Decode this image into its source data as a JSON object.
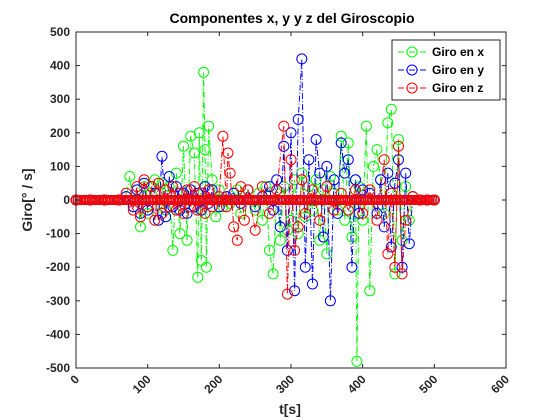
{
  "chart_data": {
    "type": "line",
    "title": "Componentes x, y y z del Giroscopio",
    "xlabel": "t[s]",
    "ylabel": "Giro[° / s]",
    "xlim": [
      0,
      600
    ],
    "ylim": [
      -500,
      500
    ],
    "xticks": [
      0,
      100,
      200,
      300,
      400,
      500,
      600
    ],
    "yticks": [
      -500,
      -400,
      -300,
      -200,
      -100,
      0,
      100,
      200,
      300,
      400,
      500
    ],
    "grid": false,
    "legend_position": "top-right",
    "marker": "circle",
    "line_style": "dash-dot",
    "series": [
      {
        "name": "Giro en x",
        "color": "#00ff00",
        "x": [
          0,
          20,
          40,
          60,
          70,
          75,
          80,
          85,
          90,
          95,
          100,
          105,
          110,
          115,
          120,
          125,
          130,
          135,
          140,
          145,
          150,
          155,
          160,
          165,
          170,
          172,
          175,
          178,
          180,
          182,
          185,
          190,
          195,
          200,
          205,
          210,
          215,
          220,
          225,
          230,
          240,
          250,
          255,
          260,
          265,
          270,
          275,
          280,
          285,
          290,
          295,
          300,
          305,
          310,
          315,
          320,
          325,
          330,
          335,
          340,
          345,
          350,
          355,
          360,
          365,
          370,
          375,
          380,
          385,
          390,
          392,
          395,
          400,
          405,
          410,
          415,
          420,
          425,
          430,
          435,
          440,
          445,
          450,
          455,
          460,
          465,
          470,
          480,
          490,
          500
        ],
        "y": [
          0,
          0,
          0,
          0,
          10,
          70,
          -20,
          30,
          -80,
          40,
          -40,
          20,
          60,
          -60,
          50,
          -30,
          40,
          -150,
          80,
          -100,
          160,
          -120,
          190,
          140,
          -230,
          200,
          -180,
          380,
          150,
          -200,
          220,
          60,
          -50,
          30,
          -20,
          10,
          -10,
          20,
          30,
          -40,
          30,
          -30,
          20,
          -60,
          40,
          -150,
          -220,
          30,
          -120,
          40,
          -90,
          -60,
          60,
          -100,
          80,
          -50,
          40,
          -30,
          60,
          -120,
          30,
          -160,
          70,
          20,
          -30,
          190,
          -60,
          170,
          -110,
          60,
          -480,
          40,
          -60,
          220,
          -270,
          100,
          150,
          60,
          -40,
          230,
          270,
          -220,
          180,
          -120,
          40,
          -60,
          10,
          0,
          0,
          0
        ]
      },
      {
        "name": "Giro en y",
        "color": "#0000ff",
        "x": [
          0,
          20,
          40,
          60,
          70,
          80,
          85,
          90,
          95,
          100,
          105,
          110,
          115,
          120,
          125,
          130,
          135,
          140,
          145,
          150,
          155,
          160,
          165,
          170,
          175,
          180,
          185,
          190,
          200,
          210,
          220,
          230,
          240,
          250,
          260,
          270,
          275,
          280,
          285,
          290,
          295,
          300,
          305,
          310,
          315,
          320,
          325,
          330,
          335,
          340,
          345,
          350,
          355,
          360,
          365,
          370,
          375,
          380,
          385,
          390,
          395,
          400,
          410,
          420,
          425,
          430,
          435,
          440,
          445,
          450,
          455,
          460,
          465,
          470,
          480,
          490,
          500
        ],
        "y": [
          0,
          0,
          0,
          0,
          10,
          -20,
          30,
          -40,
          50,
          -30,
          40,
          20,
          -60,
          130,
          -50,
          70,
          -20,
          40,
          -30,
          20,
          -40,
          30,
          -20,
          20,
          -30,
          40,
          -10,
          30,
          -20,
          10,
          20,
          -10,
          30,
          -20,
          10,
          40,
          -30,
          60,
          -80,
          160,
          -150,
          200,
          -270,
          240,
          420,
          -200,
          120,
          -250,
          180,
          80,
          -110,
          100,
          -300,
          60,
          -40,
          170,
          80,
          120,
          -200,
          60,
          -40,
          30,
          20,
          -40,
          60,
          -80,
          80,
          -140,
          50,
          120,
          -200,
          80,
          -130,
          10,
          0,
          0,
          0
        ]
      },
      {
        "name": "Giro en z",
        "color": "#ff0000",
        "x": [
          0,
          20,
          40,
          60,
          70,
          80,
          85,
          90,
          95,
          100,
          105,
          110,
          115,
          120,
          125,
          130,
          135,
          140,
          145,
          150,
          155,
          160,
          165,
          170,
          175,
          180,
          185,
          190,
          200,
          205,
          210,
          212,
          215,
          220,
          225,
          230,
          235,
          240,
          250,
          260,
          270,
          280,
          290,
          295,
          300,
          305,
          310,
          315,
          320,
          330,
          340,
          350,
          360,
          370,
          380,
          390,
          400,
          410,
          420,
          430,
          435,
          440,
          445,
          450,
          455,
          460,
          470,
          480,
          490,
          500
        ],
        "y": [
          0,
          0,
          0,
          0,
          20,
          -30,
          40,
          -50,
          60,
          -20,
          40,
          -60,
          50,
          -40,
          30,
          -20,
          40,
          -30,
          20,
          -40,
          30,
          -20,
          40,
          -30,
          20,
          -40,
          30,
          -20,
          10,
          190,
          -20,
          140,
          80,
          -80,
          -120,
          40,
          -60,
          30,
          -90,
          40,
          -40,
          30,
          220,
          -280,
          120,
          -150,
          -80,
          60,
          -40,
          30,
          -60,
          40,
          -30,
          20,
          -30,
          30,
          -40,
          30,
          -60,
          120,
          -160,
          20,
          -200,
          160,
          -220,
          -60,
          10,
          0,
          0,
          0
        ]
      }
    ]
  }
}
